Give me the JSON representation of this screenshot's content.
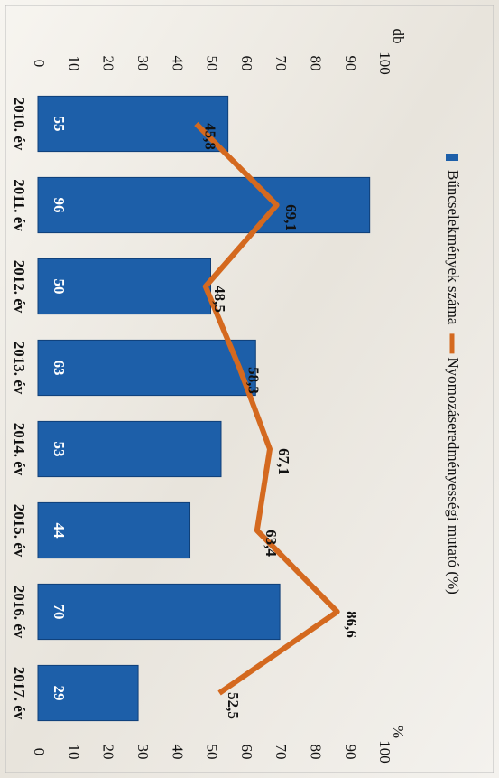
{
  "chart_data": {
    "type": "bar",
    "categories": [
      "2010. év",
      "2011. év",
      "2012. év",
      "2013. év",
      "2014. év",
      "2015. év",
      "2016. év",
      "2017. év"
    ],
    "series": [
      {
        "name": "Bűncselekmények száma",
        "type": "bar",
        "color": "#1d5fa9",
        "values": [
          55,
          96,
          50,
          63,
          53,
          44,
          70,
          29
        ]
      },
      {
        "name": "Nyomozáseredményességi mutató (%)",
        "type": "line",
        "axis": "y2",
        "color": "#d4691f",
        "values": [
          45.8,
          69.1,
          48.5,
          58.3,
          67.1,
          63.4,
          86.6,
          52.5
        ],
        "value_labels": [
          "45,8",
          "69,1",
          "48,5",
          "58,3",
          "67,1",
          "63,4",
          "86,6",
          "52,5"
        ]
      }
    ],
    "y_label": "db",
    "y2_label": "%",
    "ylim": [
      0,
      100
    ],
    "yticks": [
      0,
      10,
      20,
      30,
      40,
      50,
      60,
      70,
      80,
      90,
      100
    ],
    "y2lim": [
      0,
      100
    ],
    "y2ticks": [
      0,
      10,
      20,
      30,
      40,
      50,
      60,
      70,
      80,
      90,
      100
    ],
    "legend": "top",
    "grid": false
  }
}
